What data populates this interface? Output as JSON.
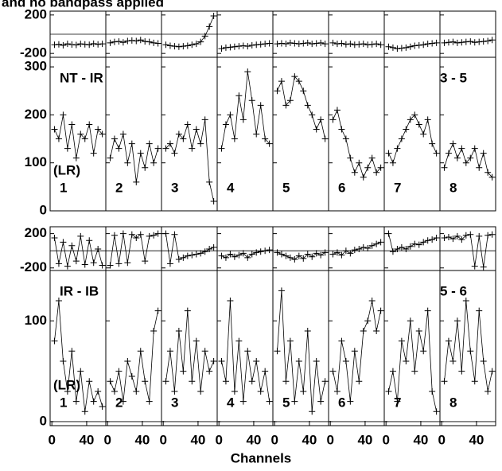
{
  "chart_data": [
    {
      "type": "line",
      "title": "and no bandpass applied",
      "x": [
        3,
        8,
        13,
        18,
        23,
        28,
        33,
        38,
        43,
        48,
        53,
        58
      ],
      "xlim": [
        -2,
        62
      ],
      "ylim": [
        -240,
        240
      ],
      "yticks": [
        -200,
        200
      ],
      "color": "#000000",
      "series": [
        {
          "values": [
            -110,
            -105,
            -115,
            -100,
            -108,
            -112,
            -100,
            -105,
            -110,
            -98,
            -105,
            -100
          ]
        },
        {
          "values": [
            -90,
            -80,
            -75,
            -85,
            -70,
            -65,
            -70,
            -60,
            -75,
            -80,
            -90,
            -95
          ]
        },
        {
          "values": [
            -110,
            -120,
            -125,
            -130,
            -125,
            -120,
            -110,
            -100,
            -80,
            -20,
            80,
            190
          ]
        },
        {
          "values": [
            -150,
            -140,
            -135,
            -130,
            -125,
            -120,
            -125,
            -115,
            -110,
            -105,
            -100,
            -95
          ]
        },
        {
          "values": [
            -100,
            -95,
            -100,
            -90,
            -95,
            -100,
            -95,
            -90,
            -100,
            -95,
            -90,
            -100
          ]
        },
        {
          "values": [
            -90,
            -100,
            -95,
            -105,
            -100,
            -110,
            -105,
            -100,
            -110,
            -105,
            -100,
            -110
          ]
        },
        {
          "values": [
            -130,
            -140,
            -150,
            -145,
            -140,
            -130,
            -120,
            -115,
            -110,
            -100,
            -95,
            -90
          ]
        },
        {
          "values": [
            -90,
            -85,
            -80,
            -90,
            -85,
            -80,
            -75,
            -85,
            -80,
            -75,
            -70,
            -60
          ]
        }
      ]
    },
    {
      "type": "line",
      "annotations": [
        "NT - IR",
        "3 - 5",
        "(LR)"
      ],
      "x": [
        3,
        8,
        13,
        18,
        23,
        28,
        33,
        38,
        43,
        48,
        53,
        58
      ],
      "xlim": [
        -2,
        62
      ],
      "ylim": [
        0,
        320
      ],
      "yticks": [
        0,
        100,
        200,
        300
      ],
      "color": "#000000",
      "series": [
        {
          "name": "1",
          "values": [
            170,
            150,
            200,
            130,
            180,
            110,
            160,
            150,
            180,
            120,
            170,
            160
          ]
        },
        {
          "name": "2",
          "values": [
            110,
            150,
            130,
            160,
            100,
            140,
            60,
            120,
            90,
            140,
            100,
            130
          ]
        },
        {
          "name": "3",
          "values": [
            130,
            140,
            120,
            160,
            150,
            180,
            130,
            170,
            140,
            190,
            60,
            20
          ]
        },
        {
          "name": "4",
          "values": [
            130,
            180,
            200,
            150,
            240,
            190,
            290,
            230,
            160,
            220,
            150,
            140
          ]
        },
        {
          "name": "5",
          "values": [
            250,
            270,
            220,
            230,
            280,
            270,
            250,
            220,
            200,
            170,
            190,
            150
          ]
        },
        {
          "name": "6",
          "values": [
            190,
            210,
            170,
            150,
            110,
            80,
            100,
            70,
            90,
            110,
            80,
            90
          ]
        },
        {
          "name": "7",
          "values": [
            120,
            100,
            130,
            150,
            170,
            190,
            200,
            180,
            160,
            190,
            140,
            120
          ]
        },
        {
          "name": "8",
          "values": [
            90,
            120,
            140,
            110,
            130,
            100,
            110,
            130,
            90,
            120,
            80,
            70
          ]
        }
      ]
    },
    {
      "type": "line",
      "x": [
        3,
        8,
        13,
        18,
        23,
        28,
        33,
        38,
        43,
        48,
        53,
        58
      ],
      "xlim": [
        -2,
        62
      ],
      "ylim": [
        -230,
        280
      ],
      "yticks": [
        -200,
        200
      ],
      "color": "#000000",
      "series": [
        {
          "values": [
            150,
            -150,
            100,
            -180,
            60,
            -120,
            170,
            -160,
            120,
            -140,
            20,
            -170
          ]
        },
        {
          "values": [
            -170,
            180,
            -150,
            200,
            -140,
            190,
            150,
            190,
            -120,
            170,
            180,
            200
          ]
        },
        {
          "values": [
            200,
            -150,
            190,
            -100,
            -80,
            -60,
            -50,
            -40,
            -30,
            -10,
            20,
            40
          ]
        },
        {
          "values": [
            -60,
            -80,
            -40,
            -70,
            -50,
            -30,
            -80,
            -40,
            -20,
            -10,
            0,
            10
          ]
        },
        {
          "values": [
            -20,
            -40,
            -60,
            -80,
            -100,
            -60,
            -90,
            -40,
            -70,
            -30,
            -50,
            -20
          ]
        },
        {
          "values": [
            -40,
            -20,
            -50,
            0,
            -30,
            10,
            20,
            40,
            30,
            60,
            80,
            100
          ]
        },
        {
          "values": [
            200,
            -10,
            20,
            40,
            20,
            50,
            80,
            70,
            100,
            120,
            130,
            150
          ]
        },
        {
          "values": [
            150,
            160,
            140,
            170,
            130,
            180,
            190,
            -180,
            170,
            -190,
            180,
            190
          ]
        }
      ]
    },
    {
      "type": "line",
      "annotations": [
        "IR - IB",
        "5 - 6",
        "(LR)"
      ],
      "xlabel": "Channels",
      "x": [
        3,
        8,
        13,
        18,
        23,
        28,
        33,
        38,
        43,
        48,
        53,
        58
      ],
      "xlim": [
        -2,
        62
      ],
      "xticks": [
        0,
        40
      ],
      "ylim": [
        -4,
        150
      ],
      "yticks": [
        0,
        100
      ],
      "color": "#000000",
      "series": [
        {
          "name": "1",
          "values": [
            80,
            120,
            60,
            30,
            70,
            20,
            50,
            10,
            40,
            20,
            30,
            15
          ]
        },
        {
          "name": "2",
          "values": [
            40,
            30,
            50,
            20,
            60,
            45,
            30,
            70,
            40,
            20,
            90,
            110
          ]
        },
        {
          "name": "3",
          "values": [
            40,
            70,
            30,
            90,
            50,
            110,
            40,
            80,
            30,
            70,
            50,
            60
          ]
        },
        {
          "name": "4",
          "values": [
            60,
            40,
            120,
            30,
            80,
            20,
            70,
            40,
            60,
            30,
            50,
            20
          ]
        },
        {
          "name": "5",
          "values": [
            70,
            130,
            40,
            80,
            20,
            60,
            30,
            90,
            10,
            60,
            20,
            40
          ]
        },
        {
          "name": "6",
          "values": [
            50,
            30,
            80,
            60,
            20,
            70,
            40,
            90,
            100,
            120,
            90,
            110
          ]
        },
        {
          "name": "7",
          "values": [
            30,
            50,
            20,
            80,
            60,
            100,
            50,
            90,
            70,
            110,
            30,
            10
          ]
        },
        {
          "name": "8",
          "values": [
            40,
            80,
            60,
            100,
            50,
            120,
            70,
            40,
            110,
            60,
            30,
            50
          ]
        }
      ]
    }
  ]
}
